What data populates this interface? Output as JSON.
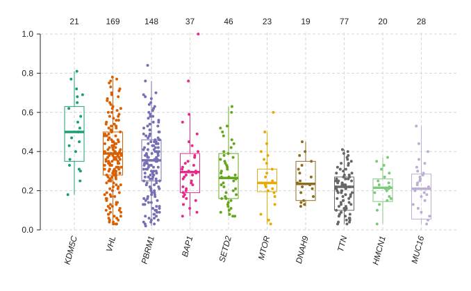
{
  "chart_data": {
    "type": "box",
    "title": "",
    "xlabel": "",
    "ylabel": "",
    "ylim": [
      0,
      1
    ],
    "yticks": [
      "0.0",
      "0.2",
      "0.4",
      "0.6",
      "0.8",
      "1.0"
    ],
    "grid": true,
    "legend": "none",
    "categories": [
      "KDM5C",
      "VHL",
      "PBRM1",
      "BAP1",
      "SETD2",
      "MTOR",
      "DNAH9",
      "TTN",
      "HMCN1",
      "MUC16"
    ],
    "counts": [
      "21",
      "169",
      "148",
      "37",
      "46",
      "23",
      "19",
      "77",
      "20",
      "28"
    ],
    "colors": [
      "#1b9e77",
      "#d95f02",
      "#7570b3",
      "#e7298a",
      "#66a61e",
      "#e6ab02",
      "#8c6d1f",
      "#666666",
      "#7fc97f",
      "#beaed4"
    ],
    "boxes": [
      {
        "whisker_low": 0.18,
        "q1": 0.35,
        "median": 0.5,
        "q3": 0.63,
        "whisker_high": 0.81
      },
      {
        "whisker_low": 0.03,
        "q1": 0.28,
        "median": 0.39,
        "q3": 0.5,
        "whisker_high": 0.78
      },
      {
        "whisker_low": 0.02,
        "q1": 0.25,
        "median": 0.355,
        "q3": 0.46,
        "whisker_high": 0.76
      },
      {
        "whisker_low": 0.07,
        "q1": 0.19,
        "median": 0.295,
        "q3": 0.39,
        "whisker_high": 0.59
      },
      {
        "whisker_low": 0.07,
        "q1": 0.16,
        "median": 0.265,
        "q3": 0.39,
        "whisker_high": 0.63
      },
      {
        "whisker_low": 0.03,
        "q1": 0.195,
        "median": 0.24,
        "q3": 0.31,
        "whisker_high": 0.5
      },
      {
        "whisker_low": 0.12,
        "q1": 0.15,
        "median": 0.235,
        "q3": 0.35,
        "whisker_high": 0.45
      },
      {
        "whisker_low": 0.03,
        "q1": 0.1,
        "median": 0.22,
        "q3": 0.27,
        "whisker_high": 0.41
      },
      {
        "whisker_low": 0.03,
        "q1": 0.145,
        "median": 0.215,
        "q3": 0.26,
        "whisker_high": 0.37
      },
      {
        "whisker_low": 0.03,
        "q1": 0.055,
        "median": 0.21,
        "q3": 0.285,
        "whisker_high": 0.53
      }
    ],
    "points": [
      [
        0.81,
        0.77,
        0.72,
        0.69,
        0.68,
        0.65,
        0.62,
        0.58,
        0.55,
        0.52,
        0.5,
        0.47,
        0.45,
        0.43,
        0.4,
        0.36,
        0.33,
        0.31,
        0.3,
        0.25,
        0.18
      ],
      [
        0.78,
        0.77,
        0.76,
        0.75,
        0.73,
        0.72,
        0.71,
        0.7,
        0.69,
        0.68,
        0.67,
        0.66,
        0.65,
        0.64,
        0.63,
        0.62,
        0.62,
        0.61,
        0.6,
        0.6,
        0.59,
        0.58,
        0.58,
        0.57,
        0.56,
        0.56,
        0.55,
        0.54,
        0.54,
        0.53,
        0.53,
        0.52,
        0.52,
        0.51,
        0.51,
        0.5,
        0.5,
        0.5,
        0.49,
        0.49,
        0.48,
        0.48,
        0.48,
        0.47,
        0.47,
        0.46,
        0.46,
        0.46,
        0.45,
        0.45,
        0.45,
        0.44,
        0.44,
        0.44,
        0.43,
        0.43,
        0.43,
        0.42,
        0.42,
        0.42,
        0.41,
        0.41,
        0.41,
        0.4,
        0.4,
        0.4,
        0.4,
        0.39,
        0.39,
        0.39,
        0.39,
        0.38,
        0.38,
        0.38,
        0.38,
        0.37,
        0.37,
        0.37,
        0.37,
        0.36,
        0.36,
        0.36,
        0.36,
        0.35,
        0.35,
        0.35,
        0.35,
        0.34,
        0.34,
        0.34,
        0.34,
        0.33,
        0.33,
        0.33,
        0.33,
        0.32,
        0.32,
        0.32,
        0.32,
        0.31,
        0.31,
        0.31,
        0.31,
        0.3,
        0.3,
        0.3,
        0.3,
        0.29,
        0.29,
        0.29,
        0.29,
        0.28,
        0.28,
        0.28,
        0.27,
        0.27,
        0.27,
        0.26,
        0.26,
        0.26,
        0.25,
        0.25,
        0.25,
        0.24,
        0.24,
        0.23,
        0.23,
        0.22,
        0.22,
        0.21,
        0.21,
        0.2,
        0.2,
        0.19,
        0.19,
        0.18,
        0.18,
        0.17,
        0.17,
        0.16,
        0.16,
        0.15,
        0.15,
        0.14,
        0.14,
        0.13,
        0.13,
        0.12,
        0.12,
        0.11,
        0.11,
        0.1,
        0.1,
        0.09,
        0.09,
        0.08,
        0.08,
        0.07,
        0.07,
        0.06,
        0.06,
        0.05,
        0.05,
        0.04,
        0.04,
        0.03,
        0.03,
        0.03,
        0.03
      ],
      [
        0.84,
        0.76,
        0.7,
        0.69,
        0.68,
        0.67,
        0.65,
        0.64,
        0.63,
        0.62,
        0.61,
        0.6,
        0.59,
        0.58,
        0.58,
        0.57,
        0.56,
        0.55,
        0.55,
        0.54,
        0.53,
        0.53,
        0.52,
        0.51,
        0.51,
        0.5,
        0.5,
        0.49,
        0.49,
        0.48,
        0.48,
        0.47,
        0.47,
        0.46,
        0.46,
        0.46,
        0.45,
        0.45,
        0.45,
        0.44,
        0.44,
        0.44,
        0.43,
        0.43,
        0.43,
        0.42,
        0.42,
        0.42,
        0.41,
        0.41,
        0.41,
        0.4,
        0.4,
        0.4,
        0.39,
        0.39,
        0.39,
        0.38,
        0.38,
        0.38,
        0.37,
        0.37,
        0.37,
        0.36,
        0.36,
        0.36,
        0.36,
        0.35,
        0.35,
        0.35,
        0.35,
        0.34,
        0.34,
        0.34,
        0.34,
        0.33,
        0.33,
        0.33,
        0.33,
        0.32,
        0.32,
        0.32,
        0.31,
        0.31,
        0.31,
        0.3,
        0.3,
        0.3,
        0.29,
        0.29,
        0.29,
        0.28,
        0.28,
        0.28,
        0.27,
        0.27,
        0.27,
        0.26,
        0.26,
        0.26,
        0.25,
        0.25,
        0.25,
        0.24,
        0.24,
        0.23,
        0.23,
        0.22,
        0.22,
        0.21,
        0.21,
        0.2,
        0.2,
        0.19,
        0.19,
        0.18,
        0.18,
        0.17,
        0.17,
        0.16,
        0.16,
        0.15,
        0.15,
        0.14,
        0.14,
        0.13,
        0.13,
        0.12,
        0.12,
        0.11,
        0.11,
        0.1,
        0.1,
        0.09,
        0.09,
        0.08,
        0.08,
        0.07,
        0.07,
        0.06,
        0.06,
        0.05,
        0.05,
        0.04,
        0.04,
        0.03,
        0.03,
        0.02
      ],
      [
        1.0,
        0.76,
        0.59,
        0.55,
        0.49,
        0.45,
        0.43,
        0.4,
        0.38,
        0.37,
        0.35,
        0.34,
        0.33,
        0.32,
        0.31,
        0.3,
        0.3,
        0.29,
        0.28,
        0.28,
        0.27,
        0.26,
        0.25,
        0.24,
        0.23,
        0.22,
        0.21,
        0.2,
        0.19,
        0.18,
        0.17,
        0.16,
        0.15,
        0.13,
        0.11,
        0.09,
        0.07
      ],
      [
        0.63,
        0.6,
        0.53,
        0.52,
        0.5,
        0.48,
        0.46,
        0.44,
        0.42,
        0.4,
        0.39,
        0.38,
        0.37,
        0.36,
        0.35,
        0.34,
        0.33,
        0.32,
        0.31,
        0.3,
        0.29,
        0.28,
        0.27,
        0.27,
        0.26,
        0.25,
        0.24,
        0.23,
        0.22,
        0.21,
        0.2,
        0.19,
        0.18,
        0.17,
        0.16,
        0.16,
        0.15,
        0.14,
        0.13,
        0.12,
        0.11,
        0.1,
        0.09,
        0.08,
        0.07,
        0.07
      ],
      [
        0.6,
        0.5,
        0.44,
        0.4,
        0.38,
        0.36,
        0.34,
        0.31,
        0.29,
        0.27,
        0.25,
        0.24,
        0.24,
        0.23,
        0.22,
        0.21,
        0.2,
        0.19,
        0.17,
        0.13,
        0.08,
        0.05,
        0.03
      ],
      [
        0.45,
        0.4,
        0.38,
        0.35,
        0.33,
        0.31,
        0.29,
        0.27,
        0.25,
        0.24,
        0.23,
        0.22,
        0.21,
        0.19,
        0.17,
        0.15,
        0.14,
        0.13,
        0.12
      ],
      [
        0.41,
        0.4,
        0.39,
        0.38,
        0.37,
        0.36,
        0.35,
        0.34,
        0.34,
        0.33,
        0.32,
        0.31,
        0.31,
        0.3,
        0.29,
        0.29,
        0.28,
        0.28,
        0.27,
        0.27,
        0.26,
        0.26,
        0.26,
        0.25,
        0.25,
        0.25,
        0.24,
        0.24,
        0.24,
        0.23,
        0.23,
        0.23,
        0.22,
        0.22,
        0.22,
        0.22,
        0.21,
        0.21,
        0.21,
        0.2,
        0.2,
        0.2,
        0.19,
        0.19,
        0.19,
        0.18,
        0.18,
        0.17,
        0.17,
        0.16,
        0.16,
        0.15,
        0.15,
        0.14,
        0.14,
        0.13,
        0.13,
        0.12,
        0.12,
        0.11,
        0.11,
        0.1,
        0.1,
        0.09,
        0.09,
        0.08,
        0.08,
        0.07,
        0.07,
        0.06,
        0.06,
        0.05,
        0.05,
        0.04,
        0.04,
        0.03,
        0.03
      ],
      [
        0.37,
        0.35,
        0.33,
        0.31,
        0.29,
        0.27,
        0.25,
        0.24,
        0.23,
        0.22,
        0.21,
        0.21,
        0.2,
        0.19,
        0.17,
        0.16,
        0.15,
        0.13,
        0.1,
        0.03
      ],
      [
        0.53,
        0.44,
        0.4,
        0.36,
        0.34,
        0.32,
        0.3,
        0.29,
        0.28,
        0.27,
        0.26,
        0.25,
        0.24,
        0.23,
        0.22,
        0.21,
        0.21,
        0.2,
        0.19,
        0.18,
        0.17,
        0.15,
        0.13,
        0.11,
        0.09,
        0.07,
        0.05,
        0.03
      ]
    ]
  }
}
